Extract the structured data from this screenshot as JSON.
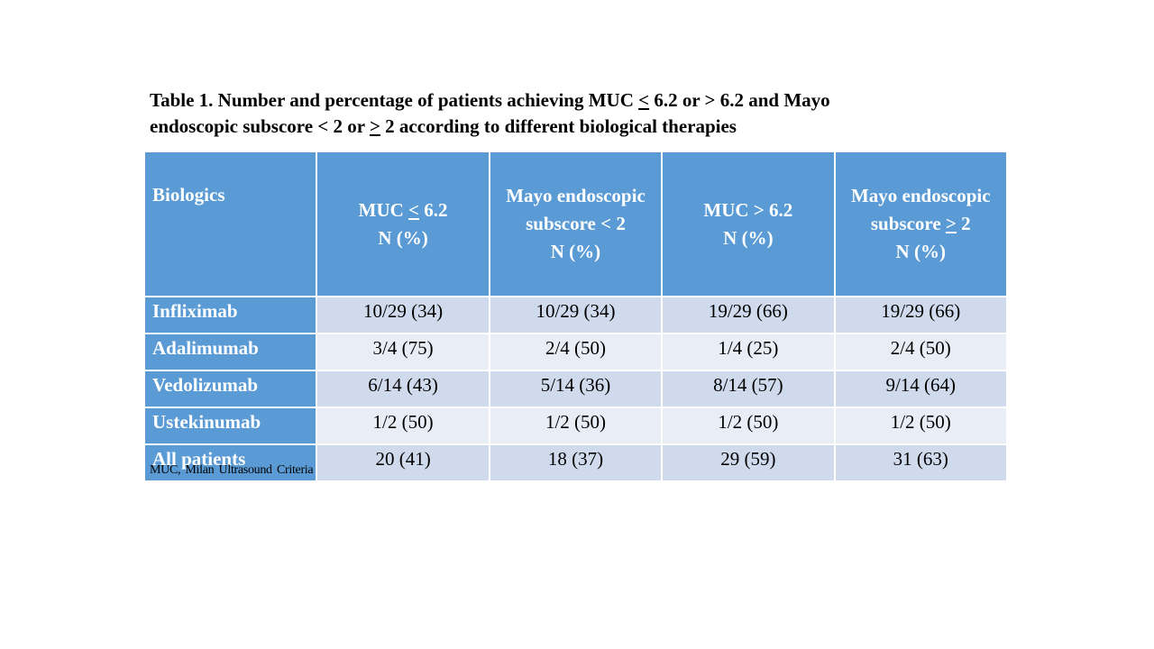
{
  "caption": {
    "line1_prefix": "Table 1. Number and percentage of patients achieving  MUC ",
    "line1_le": "<",
    "line1_suffix": " 6.2 or > 6.2 and Mayo",
    "line2_prefix": "endoscopic subscore < 2 or ",
    "line2_ge": ">",
    "line2_suffix": " 2 according to different biological therapies"
  },
  "table": {
    "header": {
      "biologics": "Biologics",
      "col1_prefix": "MUC ",
      "col1_op": "<",
      "col1_suffix": " 6.2",
      "col1_line2": "N (%)",
      "col2_line1": "Mayo endoscopic",
      "col2_line2": "subscore < 2",
      "col2_line3": "N (%)",
      "col3_line1": "MUC > 6.2",
      "col3_line2": "N (%)",
      "col4_line1": "Mayo endoscopic",
      "col4_line2_prefix": "subscore ",
      "col4_line2_op": ">",
      "col4_line2_suffix": " 2",
      "col4_line3": "N (%)"
    },
    "rows": [
      {
        "name": "Infliximab",
        "muc_le": "10/29 (34)",
        "mayo_lt": "10/29 (34)",
        "muc_gt": "19/29 (66)",
        "mayo_ge": "19/29 (66)"
      },
      {
        "name": "Adalimumab",
        "muc_le": "3/4 (75)",
        "mayo_lt": "2/4 (50)",
        "muc_gt": "1/4 (25)",
        "mayo_ge": "2/4 (50)"
      },
      {
        "name": "Vedolizumab",
        "muc_le": "6/14 (43)",
        "mayo_lt": "5/14 (36)",
        "muc_gt": "8/14 (57)",
        "mayo_ge": "9/14 (64)"
      },
      {
        "name": "Ustekinumab",
        "muc_le": "1/2 (50)",
        "mayo_lt": "1/2 (50)",
        "muc_gt": "1/2 (50)",
        "mayo_ge": "1/2 (50)"
      },
      {
        "name": "All patients",
        "muc_le": "20 (41)",
        "mayo_lt": "18 (37)",
        "muc_gt": "29 (59)",
        "mayo_ge": "31 (63)"
      }
    ]
  },
  "footnote": "MUC, Milan  Ultrasound  Criteria",
  "colors": {
    "header_blue": "#5b9bd5",
    "row_odd": "#cfdaec",
    "row_even": "#e9edf6"
  }
}
